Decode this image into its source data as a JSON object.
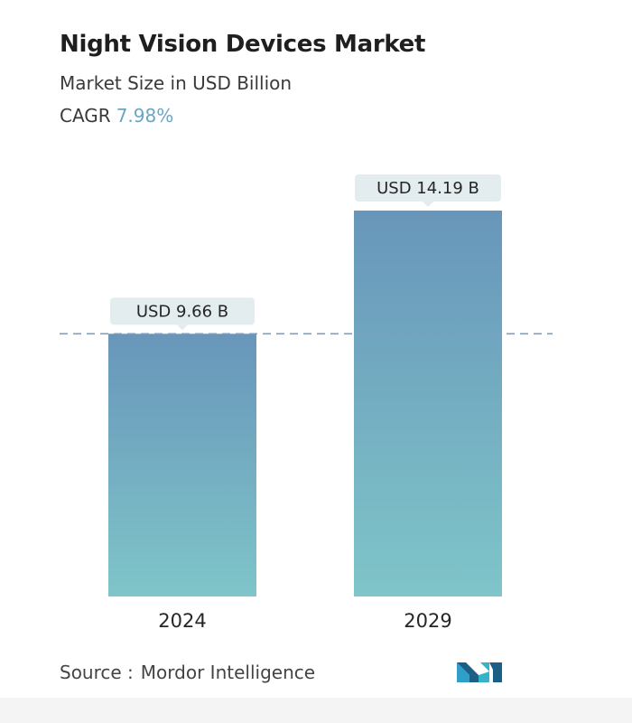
{
  "header": {
    "title": "Night Vision Devices Market",
    "subtitle": "Market Size in USD Billion",
    "cagr_label": "CAGR",
    "cagr_value": "7.98%"
  },
  "footer": {
    "source_label": "Source :",
    "source_name": "Mordor Intelligence",
    "logo": "mordor-intelligence-logo"
  },
  "colors": {
    "bar_top": "#6896ba",
    "bar_bottom": "#7fc5c9",
    "label_bg": "#e3ecee",
    "dashed_line": "#7d9fc2",
    "cagr_accent": "#6aa6c4"
  },
  "chart_data": {
    "type": "bar",
    "categories": [
      "2024",
      "2029"
    ],
    "values": [
      9.66,
      14.19
    ],
    "data_labels": [
      "USD 9.66 B",
      "USD 14.19 B"
    ],
    "title": "Night Vision Devices Market",
    "subtitle": "Market Size in USD Billion",
    "xlabel": "",
    "ylabel": "",
    "ylim": [
      0,
      14.19
    ],
    "grid": false,
    "reference_line": {
      "value": 9.66,
      "style": "dashed"
    }
  }
}
